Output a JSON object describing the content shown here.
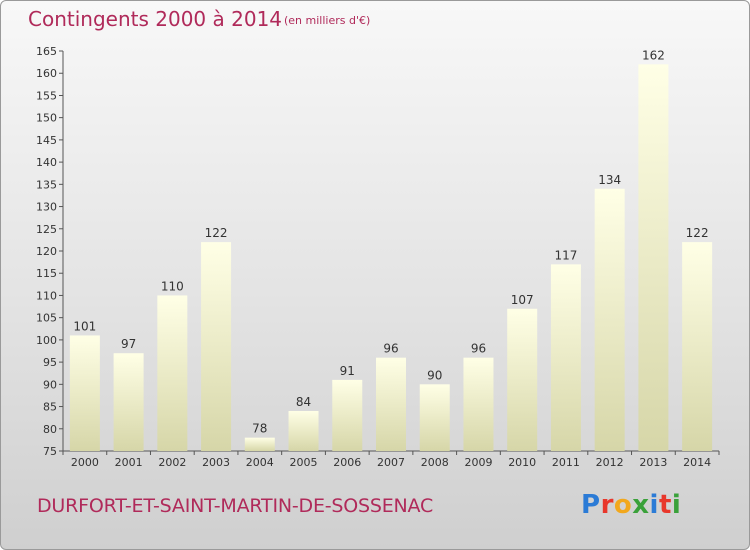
{
  "header": {
    "title": "Contingents 2000 à 2014",
    "subtitle": "(en milliers d'€)"
  },
  "footer": {
    "commune": "DURFORT-ET-SAINT-MARTIN-DE-SOSSENAC",
    "logo": "Proxiti"
  },
  "colors": {
    "title": "#b02a5a",
    "bar_light": "#ffffe6",
    "bar_dark": "#d6d6a8",
    "logo": [
      "#2b7bd6",
      "#e8372b",
      "#f2a81d",
      "#3aa13a",
      "#2b7bd6",
      "#e8372b",
      "#3aa13a"
    ]
  },
  "chart_data": {
    "type": "bar",
    "categories": [
      "2000",
      "2001",
      "2002",
      "2003",
      "2004",
      "2005",
      "2006",
      "2007",
      "2008",
      "2009",
      "2010",
      "2011",
      "2012",
      "2013",
      "2014"
    ],
    "values": [
      101,
      97,
      110,
      122,
      78,
      84,
      91,
      96,
      90,
      96,
      107,
      117,
      134,
      162,
      122
    ],
    "ylim": [
      75,
      165
    ],
    "ytick_step": 5,
    "ytick_labels": [
      "75",
      "80",
      "85",
      "90",
      "95",
      "100",
      "105",
      "110",
      "115",
      "120",
      "125",
      "130",
      "135",
      "140",
      "145",
      "150",
      "155",
      "160",
      "165"
    ],
    "data_labels": [
      "101",
      "97",
      "110",
      "122",
      "78",
      "84",
      "91",
      "96",
      "90",
      "96",
      "107",
      "117",
      "134",
      "162",
      "122"
    ],
    "xlabel": "",
    "ylabel": "",
    "grid": false,
    "legend": "none"
  }
}
